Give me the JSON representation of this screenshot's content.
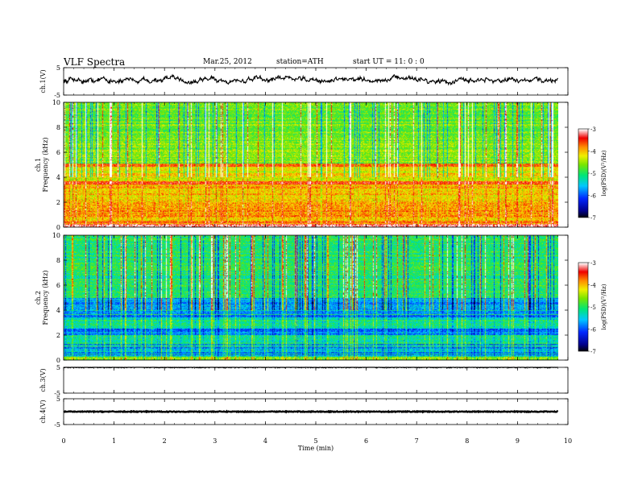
{
  "header": {
    "title": "VLF  Spectra",
    "date": "Mar.25, 2012",
    "station": "station=ATH",
    "start": "start  UT  =    11: 0  : 0"
  },
  "chart_data": [
    {
      "type": "line",
      "name": "ch1-waveform",
      "ylabel": "ch.1(V)",
      "ylim": [
        -5,
        5
      ],
      "yticks": [
        "5",
        "-5"
      ],
      "xlim": [
        0,
        10
      ],
      "data_extent_min": 9.8,
      "baseline_v": 0.5,
      "amplitude_v": 1.6
    },
    {
      "type": "heatmap",
      "name": "ch1-spectrogram",
      "channel_label": "ch.1",
      "ylabel": "Frequency  (kHz)",
      "ylim": [
        0,
        10
      ],
      "yticks": [
        "0",
        "2",
        "4",
        "6",
        "8",
        "10"
      ],
      "xlim": [
        0,
        10
      ],
      "colorbar": {
        "label": "log(PSD)(V²/Hz)",
        "range": [
          -7,
          -3
        ],
        "ticks": [
          "-3",
          "-4",
          "-5",
          "-6",
          "-7"
        ]
      }
    },
    {
      "type": "heatmap",
      "name": "ch2-spectrogram",
      "channel_label": "ch.2",
      "ylabel": "Frequency  (kHz)",
      "ylim": [
        0,
        10
      ],
      "yticks": [
        "0",
        "2",
        "4",
        "6",
        "8",
        "10"
      ],
      "xlim": [
        0,
        10
      ],
      "colorbar": {
        "label": "log(PSD)(V²/Hz)",
        "range": [
          -7,
          -3
        ],
        "ticks": [
          "-3",
          "-4",
          "-5",
          "-6",
          "-7"
        ]
      }
    },
    {
      "type": "line",
      "name": "ch3-waveform",
      "ylabel": "ch.3(V)",
      "ylim": [
        -5,
        5
      ],
      "yticks": [
        "5",
        "-5"
      ],
      "xlim": [
        0,
        10
      ],
      "baseline_v": 5,
      "amplitude_v": 0.2
    },
    {
      "type": "line",
      "name": "ch4-waveform",
      "ylabel": "ch.4(V)",
      "ylim": [
        -5,
        5
      ],
      "yticks": [
        "5",
        "-5"
      ],
      "xlim": [
        0,
        10
      ],
      "baseline_v": 0,
      "amplitude_v": 0.15
    }
  ],
  "xaxis": {
    "label": "Time  (min)",
    "ticks": [
      "0",
      "1",
      "2",
      "3",
      "4",
      "5",
      "6",
      "7",
      "8",
      "9",
      "10"
    ]
  }
}
